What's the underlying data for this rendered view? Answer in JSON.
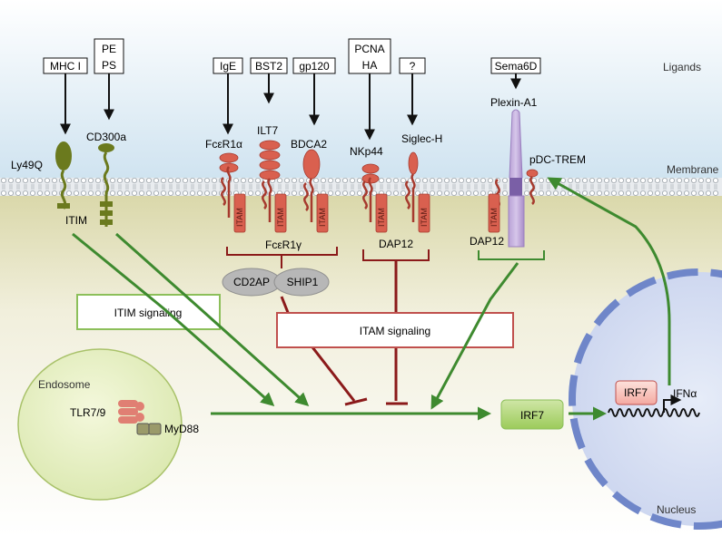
{
  "ligands": {
    "mhc1": "MHC I",
    "pe": "PE",
    "ps": "PS",
    "ige": "IgE",
    "bst2": "BST2",
    "gp120": "gp120",
    "pcna": "PCNA",
    "ha": "HA",
    "unknown": "?",
    "sema6d": "Sema6D"
  },
  "regions": {
    "ligands": "Ligands",
    "membrane": "Membrane",
    "nucleus": "Nucleus",
    "endosome": "Endosome"
  },
  "receptors": {
    "ly49q": "Ly49Q",
    "cd300a": "CD300a",
    "fcer1a": "FcεR1α",
    "ilt7": "ILT7",
    "bdca2": "BDCA2",
    "nkp44": "NKp44",
    "siglech": "Siglec-H",
    "plexina1": "Plexin-A1",
    "pdctrem": "pDC-TREM"
  },
  "adaptors": {
    "itim": "ITIM",
    "itam": "ITAM",
    "fcer1g": "FcεR1γ",
    "dap12_a": "DAP12",
    "dap12_b": "DAP12",
    "cd2ap": "CD2AP",
    "ship1": "SHIP1",
    "tlr79": "TLR7/9",
    "myd88": "MyD88"
  },
  "signaling": {
    "itim_box": "ITIM signaling",
    "itam_box": "ITAM signaling"
  },
  "transcription": {
    "irf7": "IRF7",
    "irf7_nucleus": "IRF7",
    "ifna": "IFNα"
  },
  "colors": {
    "green": "#3e8a2f",
    "red": "#8b1a1a",
    "receptor_red": "#d9604f",
    "olive": "#6b7a1e",
    "itam_box_border": "#c0504d",
    "itim_box_border": "#8cbf5a"
  }
}
